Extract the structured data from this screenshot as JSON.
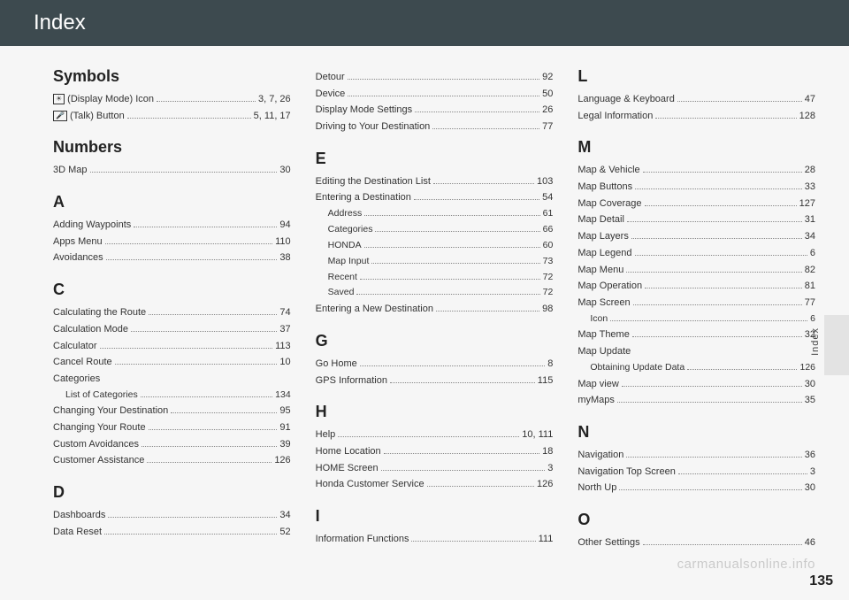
{
  "header": {
    "title": "Index"
  },
  "sideLabel": "Index",
  "pageNumber": "135",
  "watermark": "carmanualsonline.info",
  "columns": [
    {
      "sections": [
        {
          "head": "Symbols",
          "entries": [
            {
              "icon": "☀",
              "label": "(Display Mode) Icon",
              "page": "3, 7, 26"
            },
            {
              "icon": "🎤",
              "label": "(Talk) Button",
              "page": "5, 11, 17"
            }
          ]
        },
        {
          "head": "Numbers",
          "entries": [
            {
              "label": "3D Map",
              "page": "30"
            }
          ]
        },
        {
          "head": "A",
          "entries": [
            {
              "label": "Adding Waypoints",
              "page": "94"
            },
            {
              "label": "Apps Menu",
              "page": "110"
            },
            {
              "label": "Avoidances",
              "page": "38"
            }
          ]
        },
        {
          "head": "C",
          "entries": [
            {
              "label": "Calculating the Route",
              "page": "74"
            },
            {
              "label": "Calculation Mode",
              "page": "37"
            },
            {
              "label": "Calculator",
              "page": "113"
            },
            {
              "label": "Cancel Route",
              "page": "10"
            },
            {
              "label": "Categories",
              "page": ""
            },
            {
              "label": "List of Categories",
              "page": "134",
              "sub": true
            },
            {
              "label": "Changing Your Destination",
              "page": "95"
            },
            {
              "label": "Changing Your Route",
              "page": "91"
            },
            {
              "label": "Custom Avoidances",
              "page": "39"
            },
            {
              "label": "Customer Assistance",
              "page": "126"
            }
          ]
        },
        {
          "head": "D",
          "entries": [
            {
              "label": "Dashboards",
              "page": "34"
            },
            {
              "label": "Data Reset",
              "page": "52"
            }
          ]
        }
      ]
    },
    {
      "sections": [
        {
          "head": "",
          "entries": [
            {
              "label": "Detour",
              "page": "92"
            },
            {
              "label": "Device",
              "page": "50"
            },
            {
              "label": "Display Mode Settings",
              "page": "26"
            },
            {
              "label": "Driving to Your Destination",
              "page": "77"
            }
          ]
        },
        {
          "head": "E",
          "entries": [
            {
              "label": "Editing the Destination List",
              "page": "103"
            },
            {
              "label": "Entering a Destination",
              "page": "54"
            },
            {
              "label": "Address",
              "page": "61",
              "sub": true
            },
            {
              "label": "Categories",
              "page": "66",
              "sub": true
            },
            {
              "label": "HONDA",
              "page": "60",
              "sub": true
            },
            {
              "label": "Map Input",
              "page": "73",
              "sub": true
            },
            {
              "label": "Recent",
              "page": "72",
              "sub": true
            },
            {
              "label": "Saved",
              "page": "72",
              "sub": true
            },
            {
              "label": "Entering a New Destination",
              "page": "98"
            }
          ]
        },
        {
          "head": "G",
          "entries": [
            {
              "label": "Go Home",
              "page": "8"
            },
            {
              "label": "GPS Information",
              "page": "115"
            }
          ]
        },
        {
          "head": "H",
          "entries": [
            {
              "label": "Help",
              "page": "10, 111"
            },
            {
              "label": "Home Location",
              "page": "18"
            },
            {
              "label": "HOME Screen",
              "page": "3"
            },
            {
              "label": "Honda Customer Service",
              "page": "126"
            }
          ]
        },
        {
          "head": "I",
          "entries": [
            {
              "label": "Information Functions",
              "page": "111"
            }
          ]
        }
      ]
    },
    {
      "sections": [
        {
          "head": "L",
          "entries": [
            {
              "label": "Language & Keyboard",
              "page": "47"
            },
            {
              "label": "Legal Information",
              "page": "128"
            }
          ]
        },
        {
          "head": "M",
          "entries": [
            {
              "label": "Map & Vehicle",
              "page": "28"
            },
            {
              "label": "Map Buttons",
              "page": "33"
            },
            {
              "label": "Map Coverage",
              "page": "127"
            },
            {
              "label": "Map Detail",
              "page": "31"
            },
            {
              "label": "Map Layers",
              "page": "34"
            },
            {
              "label": "Map Legend",
              "page": "6"
            },
            {
              "label": "Map Menu",
              "page": "82"
            },
            {
              "label": "Map Operation",
              "page": "81"
            },
            {
              "label": "Map Screen",
              "page": "77"
            },
            {
              "label": "Icon",
              "page": "6",
              "sub": true
            },
            {
              "label": "Map Theme",
              "page": "32"
            },
            {
              "label": "Map Update",
              "page": ""
            },
            {
              "label": "Obtaining Update Data",
              "page": "126",
              "sub": true
            },
            {
              "label": "Map view",
              "page": "30"
            },
            {
              "label": "myMaps",
              "page": "35"
            }
          ]
        },
        {
          "head": "N",
          "entries": [
            {
              "label": "Navigation",
              "page": "36"
            },
            {
              "label": "Navigation Top Screen",
              "page": "3"
            },
            {
              "label": "North Up",
              "page": "30"
            }
          ]
        },
        {
          "head": "O",
          "entries": [
            {
              "label": "Other Settings",
              "page": "46"
            }
          ]
        }
      ]
    }
  ]
}
